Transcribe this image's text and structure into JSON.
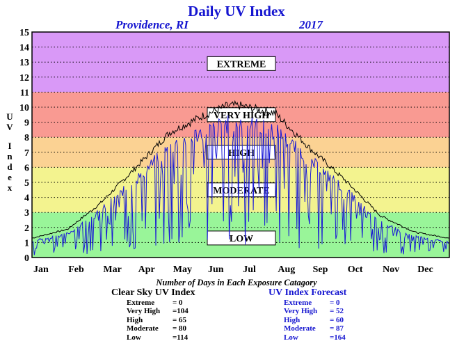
{
  "header": {
    "title": "Daily UV Index",
    "location": "Providence, RI",
    "year": "2017"
  },
  "y_axis_label_letters": [
    "U",
    "V",
    "I",
    "n",
    "d",
    "e",
    "x"
  ],
  "category_bands": [
    {
      "label": "LOW",
      "from": 0,
      "to": 3,
      "color": "#99f599"
    },
    {
      "label": "MODERATE",
      "from": 3,
      "to": 6,
      "color": "#f3f38f"
    },
    {
      "label": "HIGH",
      "from": 6,
      "to": 8,
      "color": "#fbd293"
    },
    {
      "label": "VERY HIGH",
      "from": 8,
      "to": 11,
      "color": "#f99a92"
    },
    {
      "label": "EXTREME",
      "from": 11,
      "to": 15,
      "color": "#d999f7"
    }
  ],
  "chart_data": {
    "type": "line",
    "title": "Daily UV Index",
    "subtitle": "Providence, RI 2017",
    "xlabel": "",
    "ylabel": "UV Index",
    "xlim": [
      1,
      365
    ],
    "ylim": [
      0,
      15
    ],
    "yticks": [
      0,
      1,
      2,
      3,
      4,
      5,
      6,
      7,
      8,
      9,
      10,
      11,
      12,
      13,
      14,
      15
    ],
    "month_labels": [
      "Jan",
      "Feb",
      "Mar",
      "Apr",
      "May",
      "Jun",
      "Jul",
      "Aug",
      "Sep",
      "Oct",
      "Nov",
      "Dec"
    ],
    "grid": true,
    "series": [
      {
        "name": "Clear Sky UV Index",
        "color": "#000000",
        "envelope_points": [
          [
            1,
            1.3
          ],
          [
            32,
            1.9
          ],
          [
            60,
            3.6
          ],
          [
            91,
            6.0
          ],
          [
            121,
            8.4
          ],
          [
            152,
            9.6
          ],
          [
            172,
            10.2
          ],
          [
            182,
            10.2
          ],
          [
            213,
            9.7
          ],
          [
            244,
            7.3
          ],
          [
            274,
            5.2
          ],
          [
            305,
            2.8
          ],
          [
            335,
            1.7
          ],
          [
            365,
            1.3
          ]
        ]
      },
      {
        "name": "UV Index Forecast",
        "color": "#1a1ad6",
        "envelope_points": [
          [
            1,
            1.2
          ],
          [
            32,
            1.7
          ],
          [
            60,
            3.3
          ],
          [
            91,
            5.6
          ],
          [
            121,
            8.0
          ],
          [
            152,
            9.2
          ],
          [
            172,
            9.7
          ],
          [
            182,
            9.8
          ],
          [
            213,
            9.2
          ],
          [
            244,
            7.0
          ],
          [
            274,
            4.9
          ],
          [
            305,
            2.5
          ],
          [
            335,
            1.5
          ],
          [
            365,
            1.1
          ]
        ]
      }
    ]
  },
  "summary": {
    "caption": "Number of Days in Each Exposure Catagory",
    "clear_sky": {
      "header": "Clear Sky UV Index",
      "rows": [
        {
          "label": "Extreme",
          "value": "=    0"
        },
        {
          "label": "Very High",
          "value": "=104"
        },
        {
          "label": "High",
          "value": "=  65"
        },
        {
          "label": "Moderate",
          "value": "=  80"
        },
        {
          "label": "Low",
          "value": "=114"
        }
      ]
    },
    "forecast": {
      "header": "UV Index Forecast",
      "rows": [
        {
          "label": "Extreme",
          "value": "=    0"
        },
        {
          "label": "Very High",
          "value": "=  52"
        },
        {
          "label": "High",
          "value": "=  60"
        },
        {
          "label": "Moderate",
          "value": "=  87"
        },
        {
          "label": "Low",
          "value": "=164"
        }
      ]
    }
  }
}
